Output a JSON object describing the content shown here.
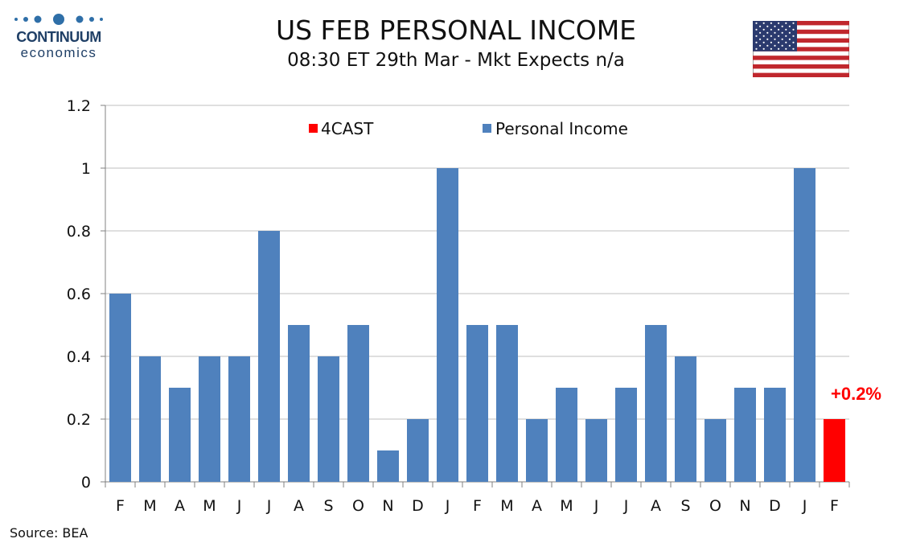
{
  "logo": {
    "name": "CONTINUUM",
    "sub": "economics"
  },
  "header": {
    "title": "US FEB PERSONAL INCOME",
    "subtitle": "08:30 ET 29th Mar - Mkt Expects n/a"
  },
  "footer": {
    "source": "Source: BEA"
  },
  "colors": {
    "actual": "#4f81bd",
    "forecast": "#ff0000",
    "grid": "#bfbfbf",
    "axis": "#808080"
  },
  "chart_data": {
    "type": "bar",
    "title": "US FEB PERSONAL INCOME",
    "xlabel": "",
    "ylabel": "",
    "ylim": [
      0,
      1.2
    ],
    "yticks": [
      "0",
      "0.2",
      "0.4",
      "0.6",
      "0.8",
      "1",
      "1.2"
    ],
    "categories": [
      "F",
      "M",
      "A",
      "M",
      "J",
      "J",
      "A",
      "S",
      "O",
      "N",
      "D",
      "J",
      "F",
      "M",
      "A",
      "M",
      "J",
      "J",
      "A",
      "S",
      "O",
      "N",
      "D",
      "J",
      "F"
    ],
    "series": [
      {
        "name": "Personal Income",
        "values": [
          0.6,
          0.4,
          0.3,
          0.4,
          0.4,
          0.8,
          0.5,
          0.4,
          0.5,
          0.1,
          0.2,
          1.0,
          0.5,
          0.5,
          0.2,
          0.3,
          0.2,
          0.3,
          0.5,
          0.4,
          0.2,
          0.3,
          0.3,
          1.0,
          null
        ]
      },
      {
        "name": "4CAST",
        "values": [
          null,
          null,
          null,
          null,
          null,
          null,
          null,
          null,
          null,
          null,
          null,
          null,
          null,
          null,
          null,
          null,
          null,
          null,
          null,
          null,
          null,
          null,
          null,
          null,
          0.2
        ]
      }
    ],
    "legend_position": "top",
    "grid": true,
    "annotation": "+0.2%"
  }
}
